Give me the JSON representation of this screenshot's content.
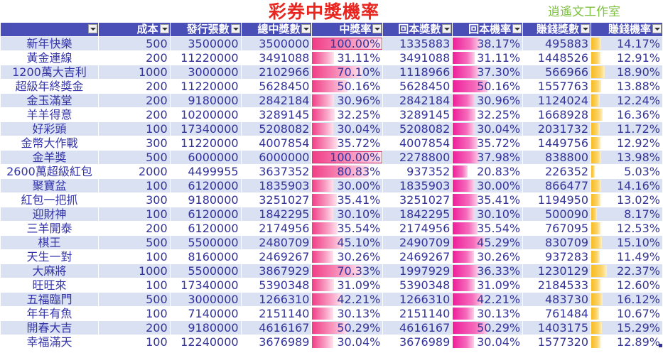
{
  "title": "彩券中獎機率",
  "studio": "逍遙文工作室",
  "headers": [
    "",
    "成本",
    "發行張數",
    "總中獎數",
    "中獎率",
    "回本獎數",
    "回本機率",
    "賺錢獎數",
    "賺錢機率"
  ],
  "colors": {
    "header_bg": "#4a4fb8",
    "band": "#d9e1f2",
    "win_bar": "#f03d86",
    "return_bar": "#ee1e9a",
    "profit_bar": "#f8bb21"
  },
  "rows": [
    {
      "name": "新年快樂",
      "cost": "500",
      "issued": "3500000",
      "total": "3500000",
      "win": "100.00%",
      "ret": "1335883",
      "ret_rate": "38.17%",
      "profit": "495883",
      "profit_rate": "14.17%",
      "w": 1.0,
      "r": 0.3817,
      "p": 0.1417
    },
    {
      "name": "黃金連線",
      "cost": "200",
      "issued": "11220000",
      "total": "3491088",
      "win": "31.11%",
      "ret": "3491088",
      "ret_rate": "31.11%",
      "profit": "1448526",
      "profit_rate": "12.91%",
      "w": 0.3111,
      "r": 0.3111,
      "p": 0.1291
    },
    {
      "name": "1200萬大吉利",
      "cost": "1000",
      "issued": "3000000",
      "total": "2102966",
      "win": "70.10%",
      "ret": "1118966",
      "ret_rate": "37.30%",
      "profit": "566966",
      "profit_rate": "18.90%",
      "w": 0.701,
      "r": 0.373,
      "p": 0.189
    },
    {
      "name": "超級年終獎金",
      "cost": "200",
      "issued": "11220000",
      "total": "5628450",
      "win": "50.16%",
      "ret": "5628450",
      "ret_rate": "50.16%",
      "profit": "1557763",
      "profit_rate": "13.88%",
      "w": 0.5016,
      "r": 0.5016,
      "p": 0.1388
    },
    {
      "name": "金玉滿堂",
      "cost": "200",
      "issued": "9180000",
      "total": "2842184",
      "win": "30.96%",
      "ret": "2842184",
      "ret_rate": "30.96%",
      "profit": "1124024",
      "profit_rate": "12.24%",
      "w": 0.3096,
      "r": 0.3096,
      "p": 0.1224
    },
    {
      "name": "羊羊得意",
      "cost": "200",
      "issued": "10200000",
      "total": "3289145",
      "win": "32.25%",
      "ret": "3289145",
      "ret_rate": "32.25%",
      "profit": "1668928",
      "profit_rate": "16.36%",
      "w": 0.3225,
      "r": 0.3225,
      "p": 0.1636
    },
    {
      "name": "好彩頭",
      "cost": "100",
      "issued": "17340000",
      "total": "5208082",
      "win": "30.04%",
      "ret": "5208082",
      "ret_rate": "30.04%",
      "profit": "2031732",
      "profit_rate": "11.72%",
      "w": 0.3004,
      "r": 0.3004,
      "p": 0.1172
    },
    {
      "name": "金幣大作戰",
      "cost": "300",
      "issued": "11220000",
      "total": "4007854",
      "win": "35.72%",
      "ret": "4007854",
      "ret_rate": "35.72%",
      "profit": "1449756",
      "profit_rate": "12.92%",
      "w": 0.3572,
      "r": 0.3572,
      "p": 0.1292
    },
    {
      "name": "金羊獎",
      "cost": "500",
      "issued": "6000000",
      "total": "6000000",
      "win": "100.00%",
      "ret": "2278800",
      "ret_rate": "37.98%",
      "profit": "838800",
      "profit_rate": "13.98%",
      "w": 1.0,
      "r": 0.3798,
      "p": 0.1398
    },
    {
      "name": "2600萬超級紅包",
      "cost": "2000",
      "issued": "4499955",
      "total": "3637352",
      "win": "80.83%",
      "ret": "937352",
      "ret_rate": "20.83%",
      "profit": "226352",
      "profit_rate": "5.03%",
      "w": 0.8083,
      "r": 0.2083,
      "p": 0.0503
    },
    {
      "name": "聚寶盆",
      "cost": "100",
      "issued": "6120000",
      "total": "1835903",
      "win": "30.00%",
      "ret": "1835903",
      "ret_rate": "30.00%",
      "profit": "866477",
      "profit_rate": "14.16%",
      "w": 0.3,
      "r": 0.3,
      "p": 0.1416
    },
    {
      "name": "紅包一把抓",
      "cost": "300",
      "issued": "9180000",
      "total": "3251027",
      "win": "35.41%",
      "ret": "3251027",
      "ret_rate": "35.41%",
      "profit": "1194950",
      "profit_rate": "13.02%",
      "w": 0.3541,
      "r": 0.3541,
      "p": 0.1302
    },
    {
      "name": "迎財神",
      "cost": "100",
      "issued": "6120000",
      "total": "1842295",
      "win": "30.10%",
      "ret": "1842295",
      "ret_rate": "30.10%",
      "profit": "500090",
      "profit_rate": "8.17%",
      "w": 0.301,
      "r": 0.301,
      "p": 0.0817
    },
    {
      "name": "三羊開泰",
      "cost": "200",
      "issued": "6120000",
      "total": "2174956",
      "win": "35.54%",
      "ret": "2174956",
      "ret_rate": "35.54%",
      "profit": "767095",
      "profit_rate": "12.53%",
      "w": 0.3554,
      "r": 0.3554,
      "p": 0.1253
    },
    {
      "name": "棋王",
      "cost": "500",
      "issued": "5500000",
      "total": "2480709",
      "win": "45.10%",
      "ret": "2490709",
      "ret_rate": "45.29%",
      "profit": "830709",
      "profit_rate": "15.10%",
      "w": 0.451,
      "r": 0.4529,
      "p": 0.151
    },
    {
      "name": "天生一對",
      "cost": "100",
      "issued": "8160000",
      "total": "2469267",
      "win": "30.26%",
      "ret": "2469267",
      "ret_rate": "30.26%",
      "profit": "937283",
      "profit_rate": "11.49%",
      "w": 0.3026,
      "r": 0.3026,
      "p": 0.1149
    },
    {
      "name": "大麻將",
      "cost": "1000",
      "issued": "5500000",
      "total": "3867929",
      "win": "70.33%",
      "ret": "1997929",
      "ret_rate": "36.33%",
      "profit": "1230129",
      "profit_rate": "22.37%",
      "w": 0.7033,
      "r": 0.3633,
      "p": 0.2237
    },
    {
      "name": "旺旺來",
      "cost": "100",
      "issued": "17340000",
      "total": "5390348",
      "win": "31.09%",
      "ret": "5390348",
      "ret_rate": "31.09%",
      "profit": "2184533",
      "profit_rate": "12.60%",
      "w": 0.3109,
      "r": 0.3109,
      "p": 0.126
    },
    {
      "name": "五福臨門",
      "cost": "500",
      "issued": "3000000",
      "total": "1266310",
      "win": "42.21%",
      "ret": "1266310",
      "ret_rate": "42.21%",
      "profit": "483730",
      "profit_rate": "16.12%",
      "w": 0.4221,
      "r": 0.4221,
      "p": 0.1612
    },
    {
      "name": "年年有魚",
      "cost": "100",
      "issued": "7140000",
      "total": "2151140",
      "win": "30.13%",
      "ret": "2151140",
      "ret_rate": "30.13%",
      "profit": "761484",
      "profit_rate": "10.67%",
      "w": 0.3013,
      "r": 0.3013,
      "p": 0.1067
    },
    {
      "name": "開春大吉",
      "cost": "200",
      "issued": "9180000",
      "total": "4616167",
      "win": "50.29%",
      "ret": "4616167",
      "ret_rate": "50.29%",
      "profit": "1403175",
      "profit_rate": "15.29%",
      "w": 0.5029,
      "r": 0.5029,
      "p": 0.1529
    },
    {
      "name": "幸福滿天",
      "cost": "100",
      "issued": "12240000",
      "total": "3676989",
      "win": "30.04%",
      "ret": "3676989",
      "ret_rate": "30.04%",
      "profit": "1577320",
      "profit_rate": "12.89%",
      "w": 0.3004,
      "r": 0.3004,
      "p": 0.1289
    }
  ]
}
